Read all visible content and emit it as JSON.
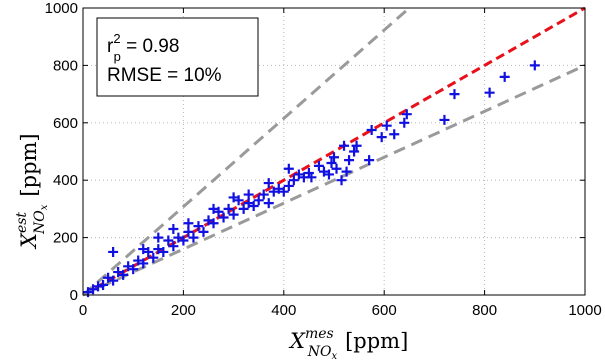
{
  "chart_data": {
    "type": "scatter",
    "title": "",
    "xlabel": {
      "main": "X",
      "sup": "mes",
      "sub": "NO",
      "sub2": "x",
      "unit": "[ppm]"
    },
    "ylabel": {
      "main": "X",
      "sup": "est",
      "sub": "NO",
      "sub2": "x",
      "unit": "[ppm]"
    },
    "xlim": [
      0,
      1000
    ],
    "ylim": [
      0,
      1000
    ],
    "xticks": [
      "0",
      "200",
      "400",
      "600",
      "800",
      "1000"
    ],
    "yticks": [
      "0",
      "200",
      "400",
      "600",
      "800",
      "1000"
    ],
    "grid": true,
    "stats": {
      "r2_prefix": "r",
      "r2_sup": "2",
      "r2_sub": "p",
      "r2_value": " = 0.98",
      "rmse_text": "RMSE = 10%"
    },
    "lines": [
      {
        "kind": "identity",
        "color": "#e8101a",
        "x": [
          0,
          1000
        ],
        "y": [
          0,
          1000
        ]
      },
      {
        "kind": "upper-bound",
        "color": "#9a9a9a",
        "x": [
          0,
          650
        ],
        "y": [
          0,
          1000
        ]
      },
      {
        "kind": "lower-bound",
        "color": "#9a9a9a",
        "x": [
          0,
          1000
        ],
        "y": [
          0,
          800
        ]
      }
    ],
    "series": [
      {
        "marker": "plus",
        "color": "#1010e0",
        "points": [
          [
            900,
            800
          ],
          [
            840,
            760
          ],
          [
            810,
            705
          ],
          [
            740,
            700
          ],
          [
            720,
            610
          ],
          [
            645,
            630
          ],
          [
            640,
            600
          ],
          [
            620,
            560
          ],
          [
            605,
            590
          ],
          [
            595,
            550
          ],
          [
            575,
            575
          ],
          [
            570,
            470
          ],
          [
            545,
            520
          ],
          [
            540,
            500
          ],
          [
            530,
            470
          ],
          [
            525,
            430
          ],
          [
            520,
            520
          ],
          [
            515,
            400
          ],
          [
            505,
            440
          ],
          [
            500,
            480
          ],
          [
            495,
            460
          ],
          [
            490,
            420
          ],
          [
            480,
            430
          ],
          [
            470,
            450
          ],
          [
            455,
            410
          ],
          [
            450,
            425
          ],
          [
            440,
            410
          ],
          [
            430,
            420
          ],
          [
            420,
            400
          ],
          [
            410,
            380
          ],
          [
            400,
            360
          ],
          [
            390,
            370
          ],
          [
            380,
            360
          ],
          [
            370,
            320
          ],
          [
            360,
            350
          ],
          [
            350,
            330
          ],
          [
            340,
            310
          ],
          [
            330,
            320
          ],
          [
            320,
            300
          ],
          [
            310,
            330
          ],
          [
            300,
            280
          ],
          [
            290,
            300
          ],
          [
            280,
            270
          ],
          [
            270,
            290
          ],
          [
            260,
            250
          ],
          [
            250,
            260
          ],
          [
            240,
            220
          ],
          [
            230,
            240
          ],
          [
            220,
            200
          ],
          [
            210,
            220
          ],
          [
            200,
            190
          ],
          [
            190,
            200
          ],
          [
            180,
            170
          ],
          [
            170,
            190
          ],
          [
            160,
            150
          ],
          [
            150,
            160
          ],
          [
            140,
            130
          ],
          [
            130,
            150
          ],
          [
            120,
            110
          ],
          [
            110,
            120
          ],
          [
            100,
            90
          ],
          [
            90,
            100
          ],
          [
            80,
            70
          ],
          [
            70,
            80
          ],
          [
            60,
            50
          ],
          [
            50,
            60
          ],
          [
            40,
            35
          ],
          [
            30,
            30
          ],
          [
            20,
            20
          ],
          [
            10,
            10
          ],
          [
            60,
            150
          ],
          [
            120,
            160
          ],
          [
            150,
            200
          ],
          [
            180,
            230
          ],
          [
            210,
            250
          ],
          [
            260,
            300
          ],
          [
            300,
            340
          ],
          [
            330,
            350
          ],
          [
            370,
            390
          ],
          [
            410,
            440
          ]
        ]
      }
    ]
  }
}
